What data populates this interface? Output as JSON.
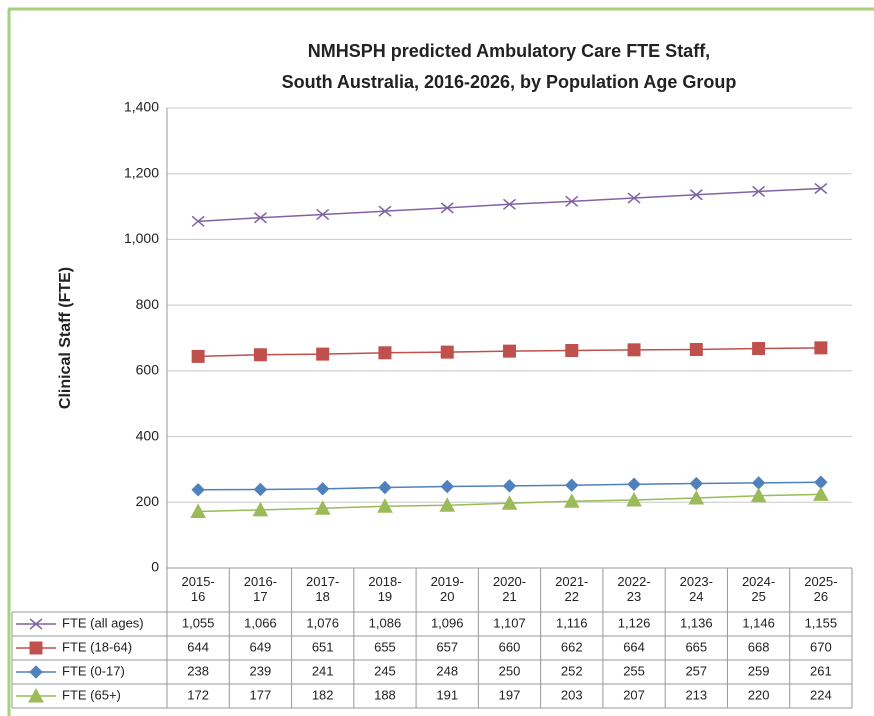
{
  "chart_data": {
    "type": "line",
    "title": [
      "NMHSPH predicted Ambulatory Care FTE Staff,",
      "South Australia, 2016-2026, by Population Age Group"
    ],
    "y_label": "Clinical Staff (FTE)",
    "categories": [
      "2015-16",
      "2016-17",
      "2017-18",
      "2018-19",
      "2019-20",
      "2020-21",
      "2021-22",
      "2022-23",
      "2023-24",
      "2024-25",
      "2025-26"
    ],
    "ylim": [
      0,
      1400
    ],
    "yticks": [
      0,
      200,
      400,
      600,
      800,
      {
        "value": 1000,
        "label": "1,000"
      },
      {
        "value": 1200,
        "label": "1,200"
      },
      {
        "value": 1400,
        "label": "1,400"
      }
    ],
    "grid": true,
    "series": [
      {
        "name": "FTE (all ages)",
        "color": "#8064a2",
        "marker": "x",
        "values": [
          1055,
          1066,
          1076,
          1086,
          1096,
          1107,
          1116,
          1126,
          1136,
          1146,
          1155
        ],
        "value_labels": [
          "1,055",
          "1,066",
          "1,076",
          "1,086",
          "1,096",
          "1,107",
          "1,116",
          "1,126",
          "1,136",
          "1,146",
          "1,155"
        ]
      },
      {
        "name": "FTE (18-64)",
        "color": "#c0504d",
        "marker": "square",
        "values": [
          644,
          649,
          651,
          655,
          657,
          660,
          662,
          664,
          665,
          668,
          670
        ]
      },
      {
        "name": "FTE (0-17)",
        "color": "#4f81bd",
        "marker": "diamond",
        "values": [
          238,
          239,
          241,
          245,
          248,
          250,
          252,
          255,
          257,
          259,
          261
        ]
      },
      {
        "name": "FTE (65+)",
        "color": "#9bbb59",
        "marker": "triangle",
        "values": [
          172,
          177,
          182,
          188,
          191,
          197,
          203,
          207,
          213,
          220,
          224
        ]
      }
    ]
  }
}
